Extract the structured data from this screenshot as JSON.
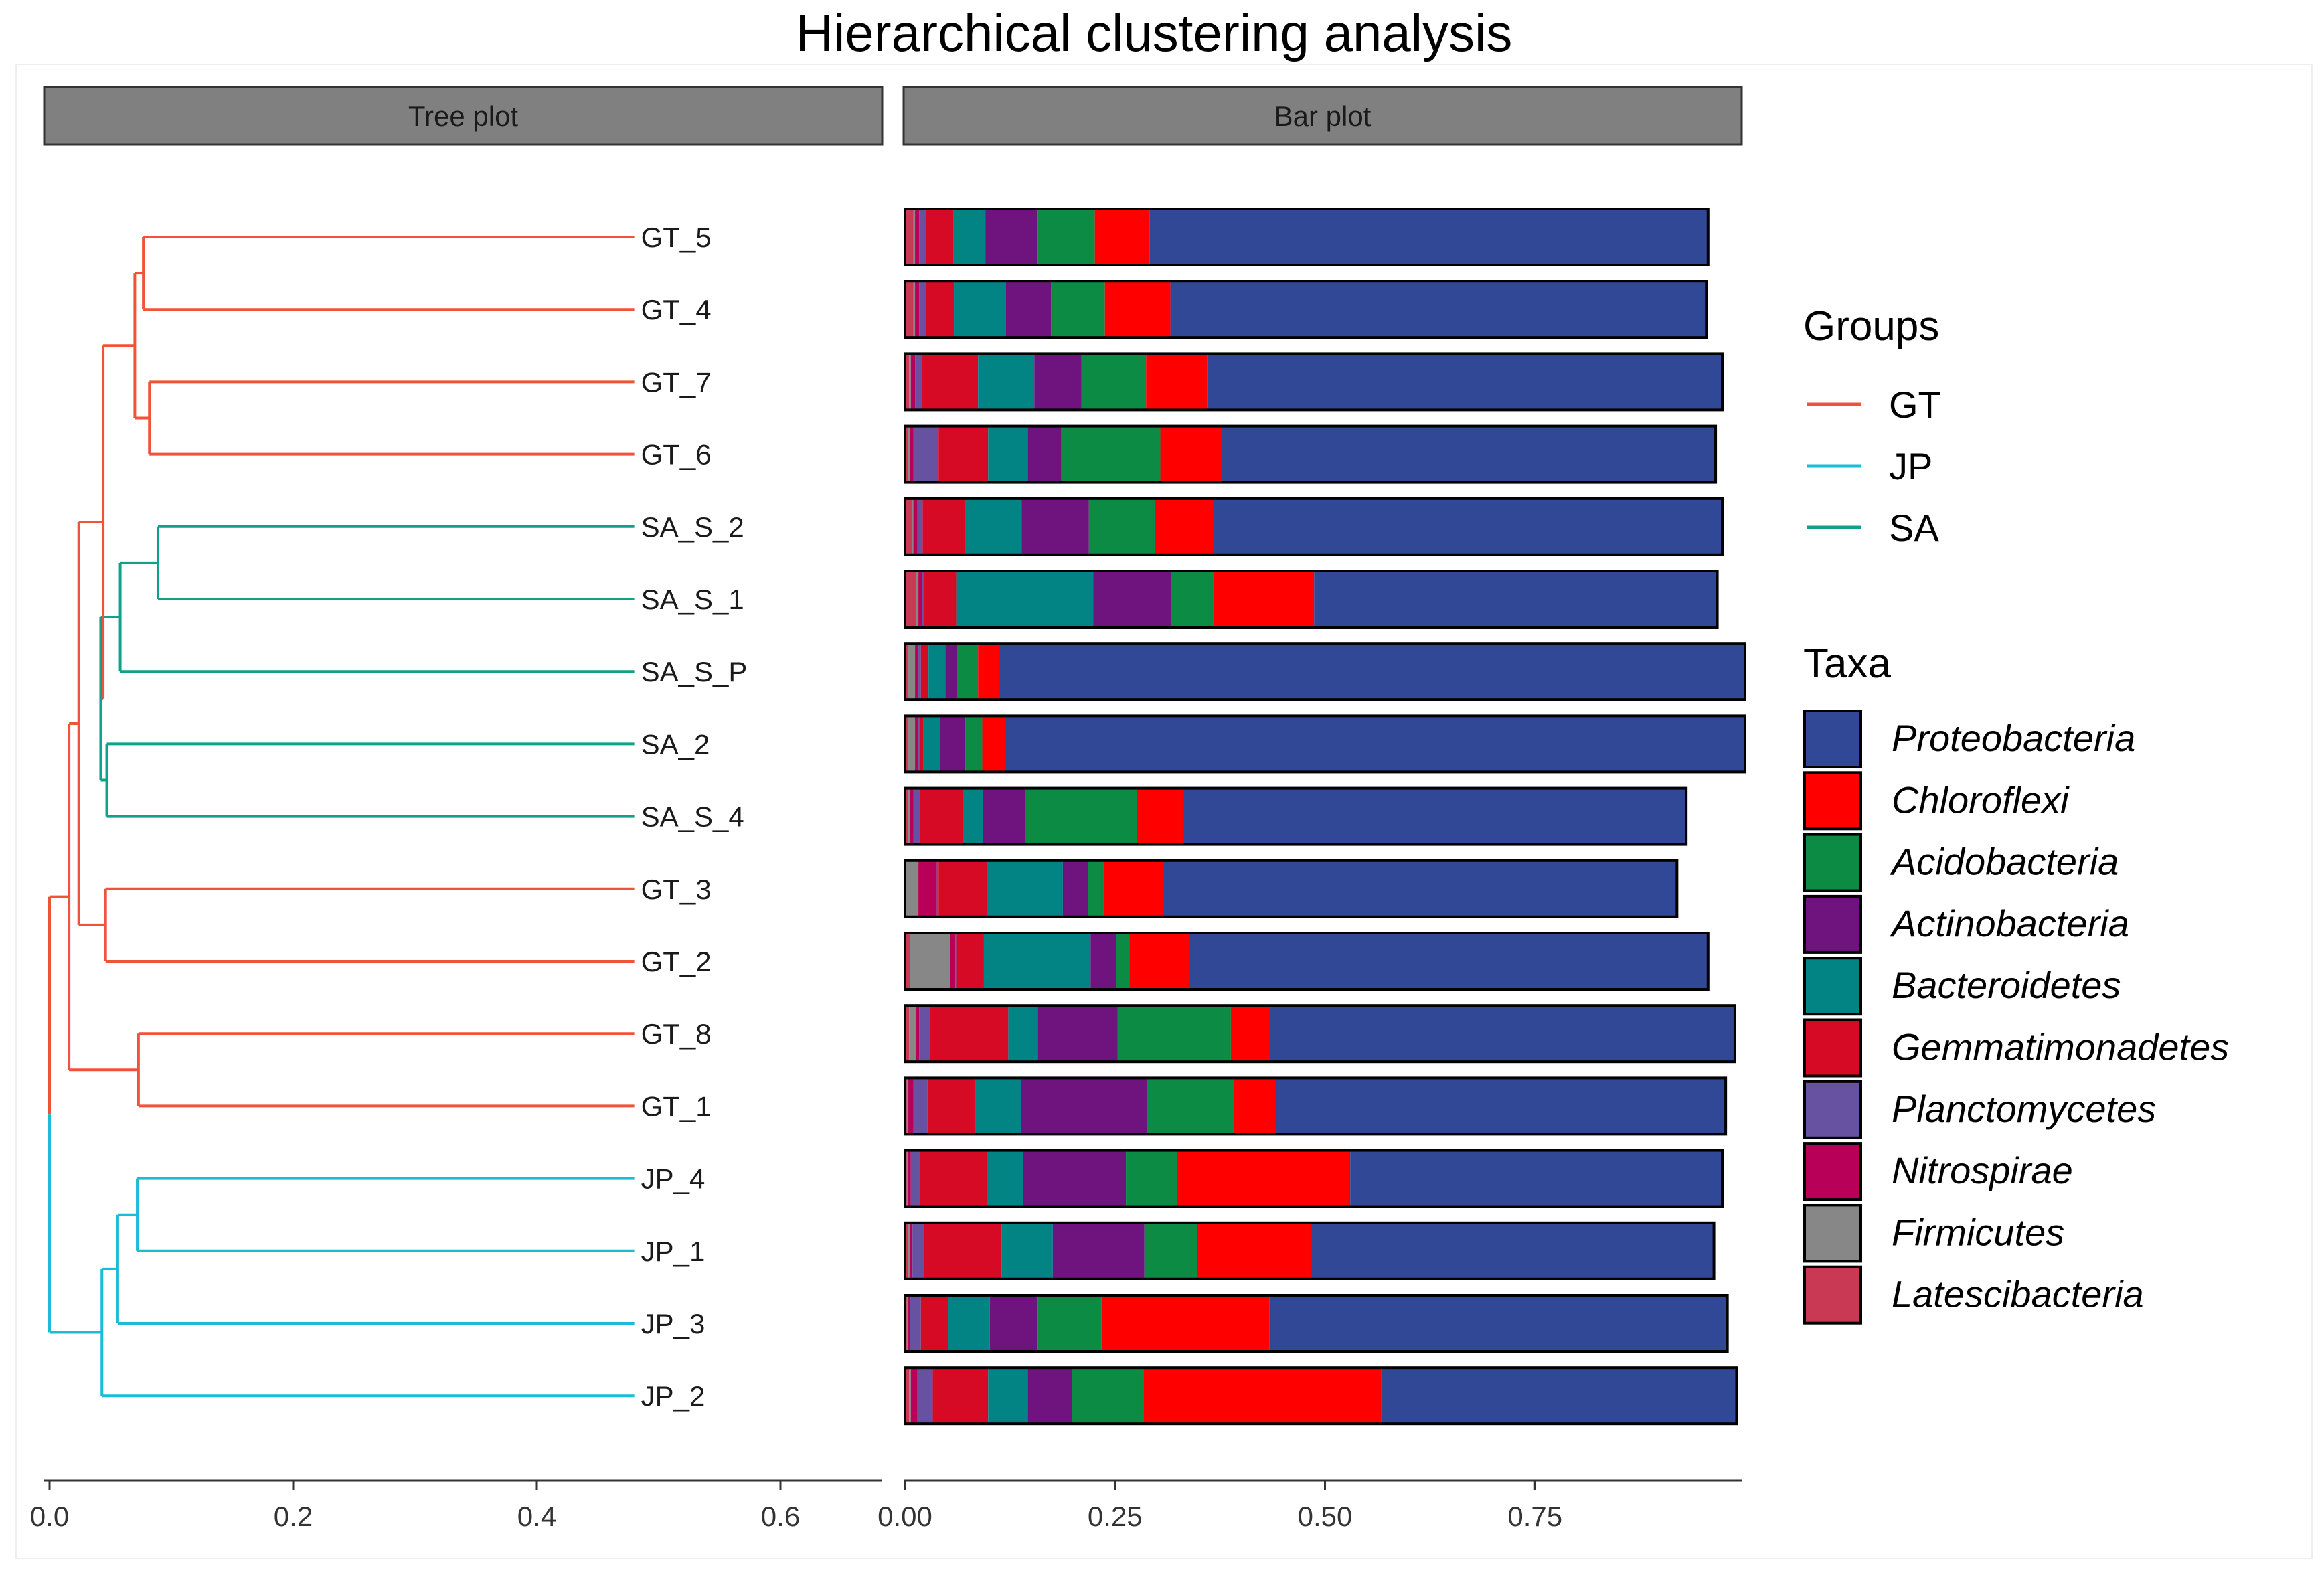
{
  "chart_data": {
    "type": "dendrogram+stacked-bar",
    "title": "Hierarchical clustering analysis",
    "panels": {
      "tree_label": "Tree plot",
      "bar_label": "Bar plot"
    },
    "tree": {
      "x_ticks": [
        0.0,
        0.2,
        0.4,
        0.6
      ],
      "x_tick_labels": [
        "0.0",
        "0.2",
        "0.4",
        "0.6"
      ],
      "xlim": [
        0.0,
        0.68
      ],
      "leaf_tip": 0.48,
      "leaves": [
        {
          "label": "GT_5",
          "group": "GT"
        },
        {
          "label": "GT_4",
          "group": "GT"
        },
        {
          "label": "GT_7",
          "group": "GT"
        },
        {
          "label": "GT_6",
          "group": "GT"
        },
        {
          "label": "SA_S_2",
          "group": "SA"
        },
        {
          "label": "SA_S_1",
          "group": "SA"
        },
        {
          "label": "SA_S_P",
          "group": "SA"
        },
        {
          "label": "SA_2",
          "group": "SA"
        },
        {
          "label": "SA_S_4",
          "group": "SA"
        },
        {
          "label": "GT_3",
          "group": "GT"
        },
        {
          "label": "GT_2",
          "group": "GT"
        },
        {
          "label": "GT_8",
          "group": "GT"
        },
        {
          "label": "GT_1",
          "group": "GT"
        },
        {
          "label": "JP_4",
          "group": "JP"
        },
        {
          "label": "JP_1",
          "group": "JP"
        },
        {
          "label": "JP_3",
          "group": "JP"
        },
        {
          "label": "JP_2",
          "group": "JP"
        }
      ],
      "merges": [
        {
          "id": "a",
          "children": [
            "L0",
            "L1"
          ],
          "height": 0.077,
          "color": "GT"
        },
        {
          "id": "b",
          "children": [
            "L2",
            "L3"
          ],
          "height": 0.082,
          "color": "GT"
        },
        {
          "id": "c",
          "children": [
            "a",
            "b"
          ],
          "height": 0.07,
          "color": "GT"
        },
        {
          "id": "d",
          "children": [
            "L4",
            "L5"
          ],
          "height": 0.089,
          "color": "SA"
        },
        {
          "id": "e",
          "children": [
            "d",
            "L6"
          ],
          "height": 0.058,
          "color": "SA"
        },
        {
          "id": "f",
          "children": [
            "L7",
            "L8"
          ],
          "height": 0.047,
          "color": "SA"
        },
        {
          "id": "g",
          "children": [
            "e",
            "f"
          ],
          "height": 0.042,
          "color": "SA"
        },
        {
          "id": "h",
          "children": [
            "c",
            "g"
          ],
          "height": 0.044,
          "color": "GT"
        },
        {
          "id": "i",
          "children": [
            "L9",
            "L10"
          ],
          "height": 0.046,
          "color": "GT"
        },
        {
          "id": "j",
          "children": [
            "h",
            "i"
          ],
          "height": 0.024,
          "color": "GT"
        },
        {
          "id": "k",
          "children": [
            "L11",
            "L12"
          ],
          "height": 0.073,
          "color": "GT"
        },
        {
          "id": "l",
          "children": [
            "j",
            "k"
          ],
          "height": 0.016,
          "color": "GT"
        },
        {
          "id": "m",
          "children": [
            "L13",
            "L14"
          ],
          "height": 0.072,
          "color": "JP"
        },
        {
          "id": "n",
          "children": [
            "m",
            "L15"
          ],
          "height": 0.056,
          "color": "JP"
        },
        {
          "id": "o",
          "children": [
            "n",
            "L16"
          ],
          "height": 0.043,
          "color": "JP"
        },
        {
          "id": "root",
          "children": [
            "l",
            "o"
          ],
          "height": 0.0,
          "color": "mixed"
        }
      ]
    },
    "bar": {
      "x_ticks": [
        0.0,
        0.25,
        0.5,
        0.75
      ],
      "x_tick_labels": [
        "0.00",
        "0.25",
        "0.50",
        "0.75"
      ],
      "xlim": [
        0.0,
        1.0
      ],
      "stack_order": [
        "Latescibacteria",
        "Firmicutes",
        "Nitrospirae",
        "Planctomycetes",
        "Gemmatimonadetes",
        "Bacteroidetes",
        "Actinobacteria",
        "Acidobacteria",
        "Chloroflexi",
        "Proteobacteria"
      ],
      "samples": [
        {
          "label": "GT_5",
          "values": [
            0.01,
            0.002,
            0.005,
            0.008,
            0.033,
            0.038,
            0.062,
            0.068,
            0.065,
            0.665
          ]
        },
        {
          "label": "GT_4",
          "values": [
            0.01,
            0.002,
            0.005,
            0.008,
            0.034,
            0.061,
            0.054,
            0.064,
            0.078,
            0.638
          ]
        },
        {
          "label": "GT_7",
          "values": [
            0.005,
            0.002,
            0.005,
            0.008,
            0.067,
            0.067,
            0.056,
            0.077,
            0.073,
            0.613
          ]
        },
        {
          "label": "GT_6",
          "values": [
            0.004,
            0.002,
            0.004,
            0.03,
            0.059,
            0.047,
            0.04,
            0.118,
            0.073,
            0.588
          ]
        },
        {
          "label": "SA_S_2",
          "values": [
            0.008,
            0.002,
            0.005,
            0.006,
            0.05,
            0.068,
            0.08,
            0.079,
            0.07,
            0.605
          ]
        },
        {
          "label": "SA_S_1",
          "values": [
            0.013,
            0.003,
            0.004,
            0.003,
            0.038,
            0.163,
            0.093,
            0.05,
            0.12,
            0.48
          ]
        },
        {
          "label": "SA_S_P",
          "values": [
            0.004,
            0.008,
            0.004,
            0.003,
            0.009,
            0.02,
            0.014,
            0.025,
            0.025,
            0.888
          ]
        },
        {
          "label": "SA_2",
          "values": [
            0.004,
            0.008,
            0.004,
            0.002,
            0.004,
            0.02,
            0.03,
            0.02,
            0.027,
            0.881
          ]
        },
        {
          "label": "SA_S_4",
          "values": [
            0.004,
            0.002,
            0.004,
            0.007,
            0.052,
            0.024,
            0.05,
            0.133,
            0.055,
            0.599
          ]
        },
        {
          "label": "GT_3",
          "values": [
            0.001,
            0.015,
            0.022,
            0.002,
            0.058,
            0.09,
            0.03,
            0.018,
            0.071,
            0.612
          ]
        },
        {
          "label": "GT_2",
          "values": [
            0.006,
            0.048,
            0.006,
            0.001,
            0.033,
            0.127,
            0.03,
            0.016,
            0.071,
            0.618
          ]
        },
        {
          "label": "GT_8",
          "values": [
            0.005,
            0.008,
            0.004,
            0.013,
            0.093,
            0.035,
            0.095,
            0.135,
            0.047,
            0.553
          ]
        },
        {
          "label": "GT_1",
          "values": [
            0.002,
            0.002,
            0.006,
            0.017,
            0.057,
            0.054,
            0.151,
            0.103,
            0.05,
            0.535
          ]
        },
        {
          "label": "JP_4",
          "values": [
            0.002,
            0.002,
            0.003,
            0.01,
            0.081,
            0.043,
            0.122,
            0.061,
            0.206,
            0.443
          ]
        },
        {
          "label": "JP_1",
          "values": [
            0.004,
            0.002,
            0.003,
            0.014,
            0.092,
            0.061,
            0.109,
            0.063,
            0.135,
            0.48
          ]
        },
        {
          "label": "JP_3",
          "values": [
            0.002,
            0.002,
            0.002,
            0.013,
            0.032,
            0.05,
            0.057,
            0.076,
            0.2,
            0.545
          ]
        },
        {
          "label": "JP_2",
          "values": [
            0.005,
            0.002,
            0.008,
            0.018,
            0.066,
            0.047,
            0.053,
            0.085,
            0.283,
            0.423
          ]
        }
      ]
    },
    "legend_groups": {
      "title": "Groups",
      "items": [
        {
          "name": "GT",
          "color": "#f0533a"
        },
        {
          "name": "JP",
          "color": "#1ebbd7"
        },
        {
          "name": "SA",
          "color": "#11a08a"
        }
      ]
    },
    "legend_taxa": {
      "title": "Taxa",
      "items": [
        {
          "name": "Proteobacteria",
          "color": "#304896"
        },
        {
          "name": "Chloroflexi",
          "color": "#fe0000"
        },
        {
          "name": "Acidobacteria",
          "color": "#0c8b45"
        },
        {
          "name": "Actinobacteria",
          "color": "#6f137f"
        },
        {
          "name": "Bacteroidetes",
          "color": "#028384"
        },
        {
          "name": "Gemmatimonadetes",
          "color": "#d60a24"
        },
        {
          "name": "Planctomycetes",
          "color": "#6652a1"
        },
        {
          "name": "Nitrospirae",
          "color": "#b80058"
        },
        {
          "name": "Firmicutes",
          "color": "#878787"
        },
        {
          "name": "Latescibacteria",
          "color": "#c93953"
        }
      ]
    },
    "mixed_root_colors": {
      "top": "#f0533a",
      "bottom": "#1ebbd7"
    }
  }
}
